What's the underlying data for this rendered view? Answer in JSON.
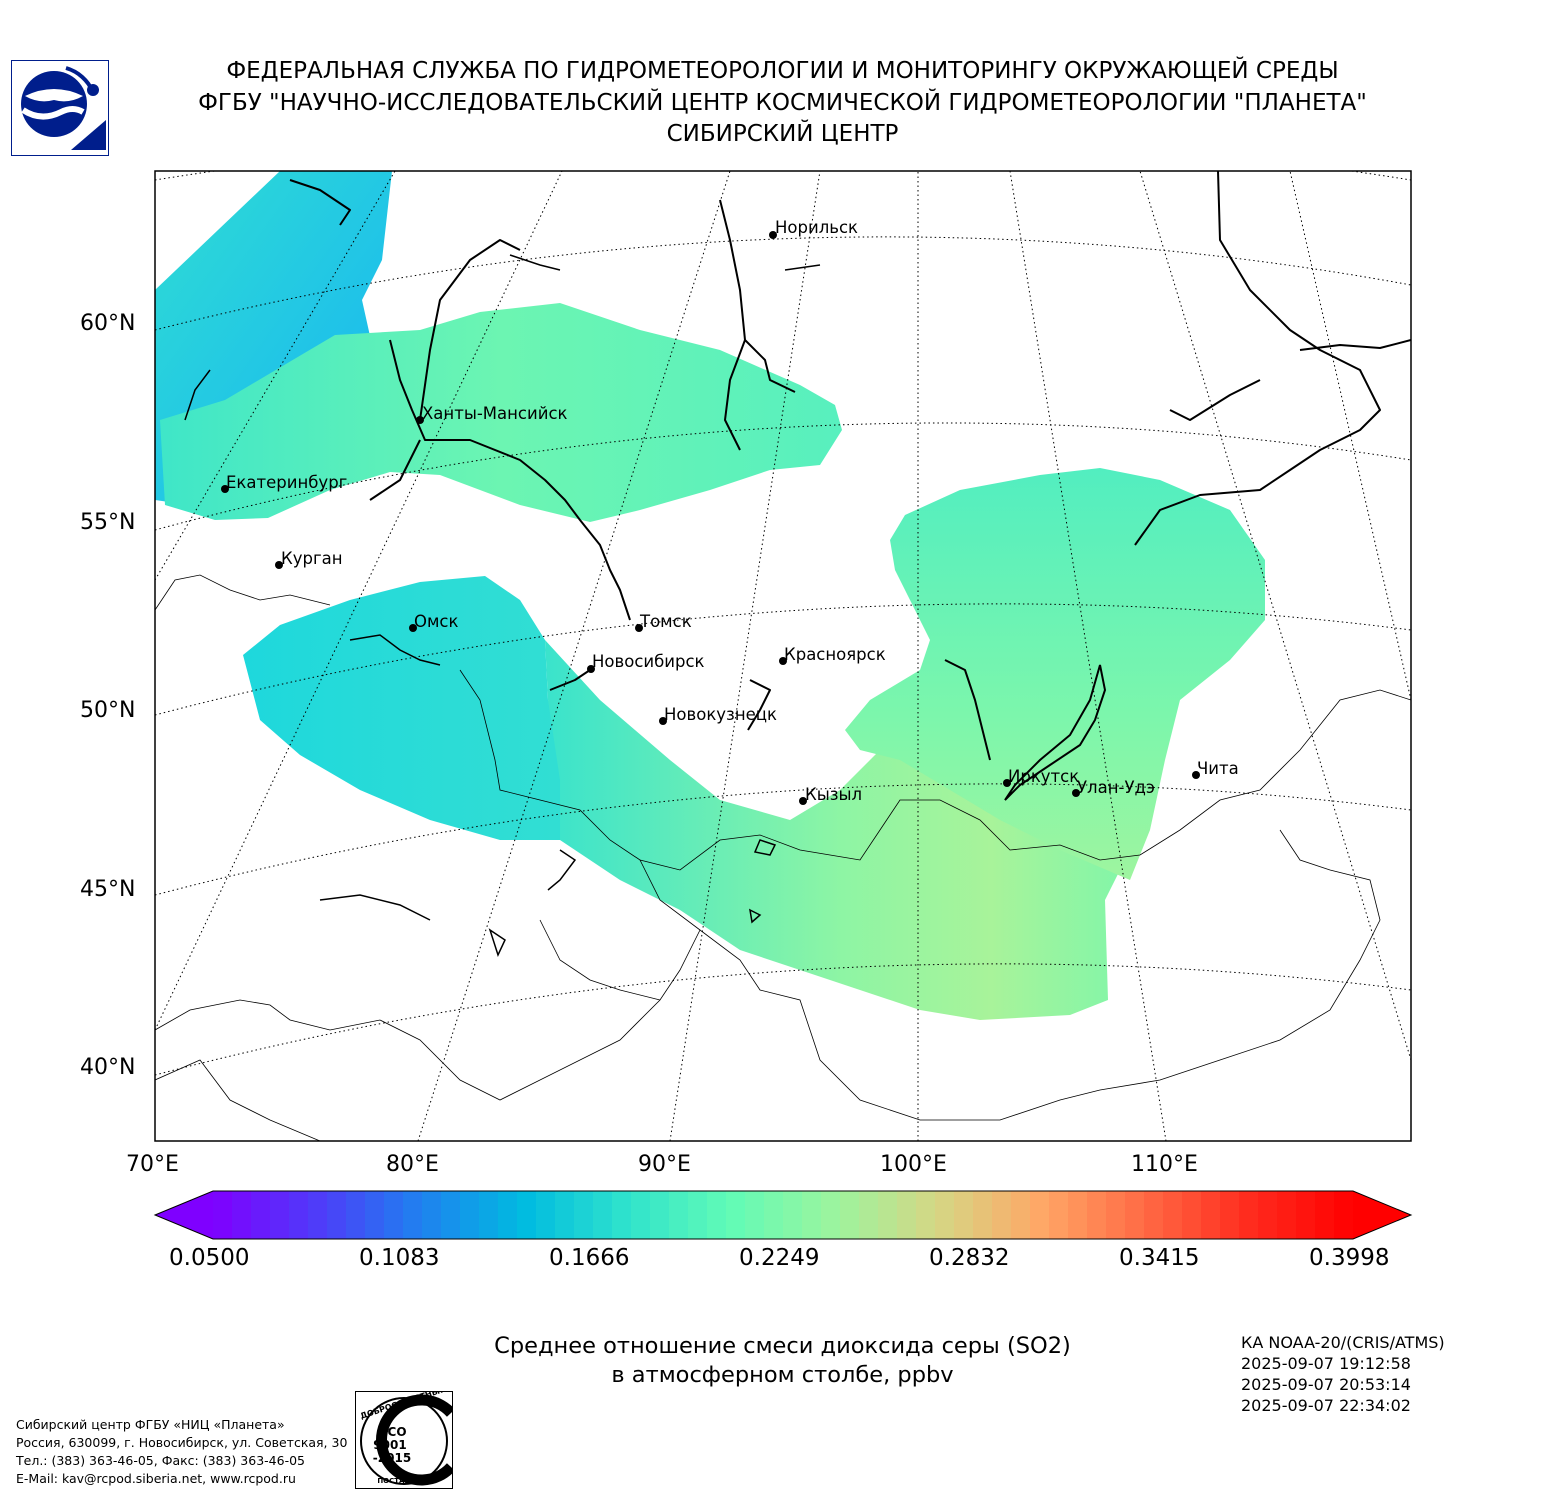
{
  "header": {
    "line1": "ФЕДЕРАЛЬНАЯ СЛУЖБА ПО ГИДРОМЕТЕОРОЛОГИИ И МОНИТОРИНГУ ОКРУЖАЮЩЕЙ СРЕДЫ",
    "line2": "ФГБУ \"НАУЧНО-ИССЛЕДОВАТЕЛЬСКИЙ ЦЕНТР КОСМИЧЕСКОЙ ГИДРОМЕТЕОРОЛОГИИ \"ПЛАНЕТА\"",
    "line3": "СИБИРСКИЙ ЦЕНТР"
  },
  "map": {
    "lat_labels": [
      "60°N",
      "55°N",
      "50°N",
      "45°N",
      "40°N"
    ],
    "lon_labels": [
      "70°E",
      "80°E",
      "90°E",
      "100°E",
      "110°E"
    ],
    "cities": [
      {
        "name": "Норильск"
      },
      {
        "name": "Ханты-Мансийск"
      },
      {
        "name": "Екатеринбург"
      },
      {
        "name": "Курган"
      },
      {
        "name": "Омск"
      },
      {
        "name": "Томск"
      },
      {
        "name": "Новосибирск"
      },
      {
        "name": "Красноярск"
      },
      {
        "name": "Новокузнецк"
      },
      {
        "name": "Иркутск"
      },
      {
        "name": "Улан-Удэ"
      },
      {
        "name": "Чита"
      },
      {
        "name": "Кызыл"
      }
    ]
  },
  "colorbar": {
    "min": 0.05,
    "max": 0.3998,
    "ticks": [
      "0.0500",
      "0.1083",
      "0.1666",
      "0.2249",
      "0.2832",
      "0.3415",
      "0.3998"
    ],
    "colors": [
      "#7f00ff",
      "#4f3bf9",
      "#1f81ef",
      "#00bbe0",
      "#30e3cc",
      "#62fbb6",
      "#9cf49e",
      "#d6d684",
      "#ffa766",
      "#ff6944",
      "#ff2b1e",
      "#ff0000"
    ]
  },
  "caption": {
    "line1": "Среднее отношение смеси диоксида серы (SO2)",
    "line2": "в атмосферном столбе, ppbv"
  },
  "satellite": {
    "name": "КА NOAA-20/(CRIS/ATMS)",
    "times": [
      "2025-09-07 19:12:58",
      "2025-09-07 20:53:14",
      "2025-09-07 22:34:02"
    ]
  },
  "footer": {
    "lines": [
      "Сибирский центр ФГБУ «НИЦ «Планета»",
      "Россия, 630099, г. Новосибирск, ул. Советская, 30",
      "Тел.: (383) 363-46-05, Факс: (383) 363-46-05",
      "E-Mail: kav@rcpod.siberia.net, www.rcpod.ru"
    ]
  },
  "iso_badge": {
    "top": "ДОБРОСОВЕСТНЫЙ",
    "line1": "ИСО",
    "line2": "9001",
    "line3": "-2015",
    "bottom": "ПОСТАВЩИК"
  }
}
